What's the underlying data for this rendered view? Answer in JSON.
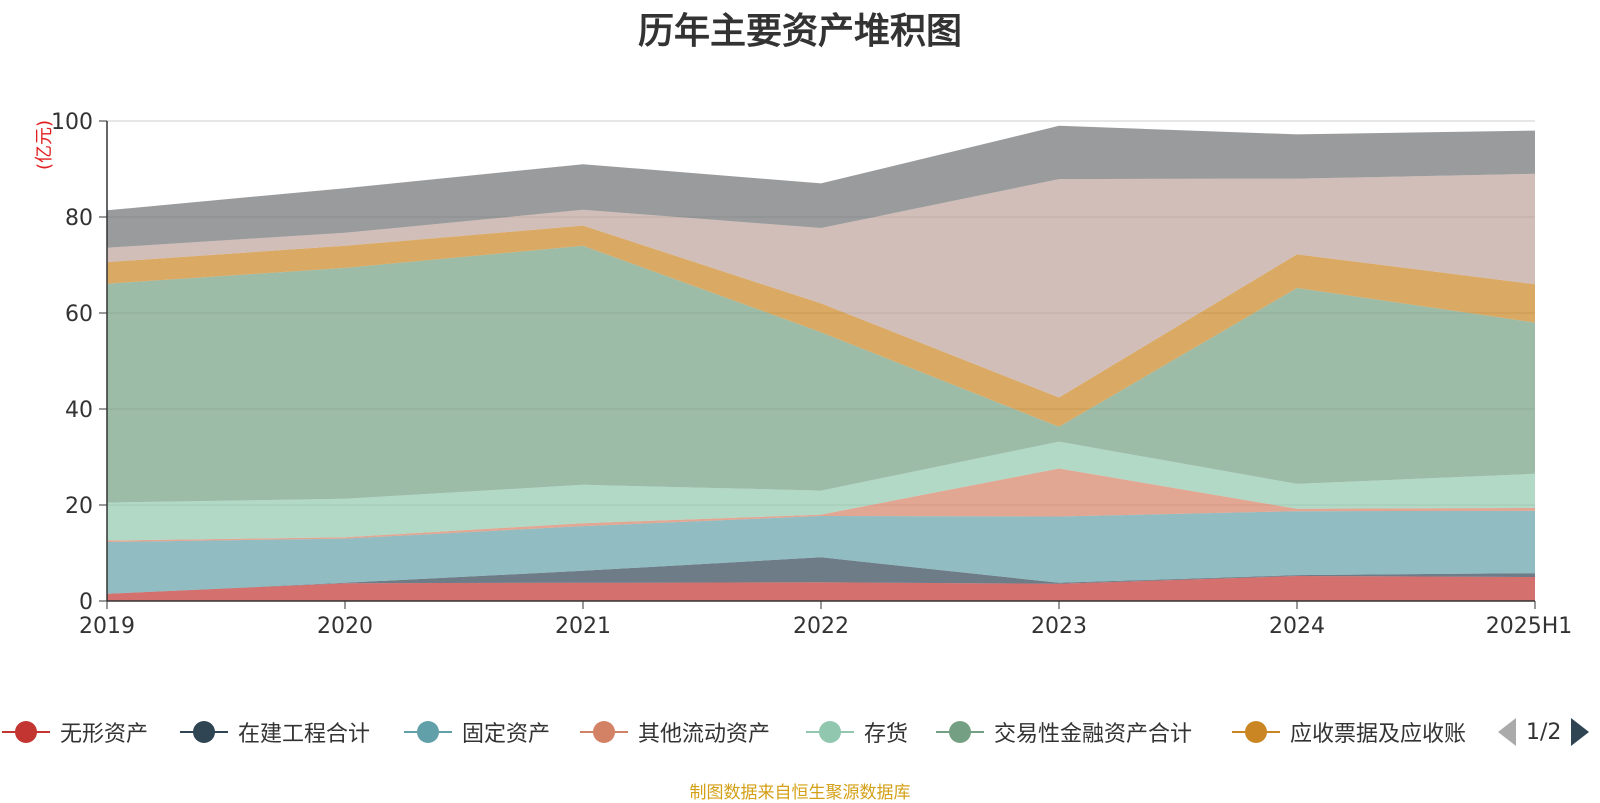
{
  "chart_data": {
    "type": "area",
    "stacked": true,
    "title": "历年主要资产堆积图",
    "unit_label": "(亿元)",
    "categories": [
      "2019",
      "2020",
      "2021",
      "2022",
      "2023",
      "2024",
      "2025H1"
    ],
    "ylim": [
      0,
      100
    ],
    "yticks": [
      0,
      20,
      40,
      60,
      80,
      100
    ],
    "grid": true,
    "series": [
      {
        "name": "无形资产",
        "color": "#c23531",
        "values": [
          1.5,
          3.7,
          3.8,
          3.9,
          3.6,
          5.2,
          5.0
        ]
      },
      {
        "name": "在建工程合计",
        "color": "#2f4554",
        "values": [
          0.0,
          0.1,
          2.5,
          5.2,
          0.2,
          0.2,
          0.8
        ]
      },
      {
        "name": "固定资产",
        "color": "#61a0a8",
        "values": [
          10.8,
          9.2,
          9.3,
          8.6,
          13.8,
          13.3,
          13.0
        ]
      },
      {
        "name": "其他流动资产",
        "color": "#d48265",
        "values": [
          0.3,
          0.3,
          0.6,
          0.3,
          10.0,
          0.5,
          0.6
        ]
      },
      {
        "name": "存货",
        "color": "#91c7ae",
        "values": [
          7.9,
          8.0,
          8.0,
          5.0,
          5.6,
          5.2,
          7.1
        ]
      },
      {
        "name": "交易性金融资产合计",
        "color": "#749f83",
        "values": [
          45.6,
          48.1,
          49.8,
          33.0,
          3.1,
          40.8,
          31.5
        ]
      },
      {
        "name": "应收票据及应收账",
        "color": "#ca8622",
        "values": [
          4.5,
          4.6,
          4.2,
          6.0,
          6.1,
          7.0,
          8.0
        ]
      },
      {
        "name": "",
        "color": "#bda29a",
        "values": [
          3.0,
          2.7,
          3.3,
          15.7,
          45.5,
          15.8,
          23.0
        ]
      },
      {
        "name": "",
        "color": "#6e7074",
        "values": [
          7.8,
          9.3,
          9.5,
          9.3,
          11.1,
          9.2,
          9.0
        ]
      }
    ]
  },
  "legend": {
    "items": [
      {
        "label": "无形资产",
        "color": "#c23531"
      },
      {
        "label": "在建工程合计",
        "color": "#2f4554"
      },
      {
        "label": "固定资产",
        "color": "#61a0a8"
      },
      {
        "label": "其他流动资产",
        "color": "#d48265"
      },
      {
        "label": "存货",
        "color": "#91c7ae"
      },
      {
        "label": "交易性金融资产合计",
        "color": "#749f83"
      },
      {
        "label": "应收票据及应收账",
        "color": "#ca8622"
      }
    ],
    "page_indicator": "1/2"
  },
  "source_note": "制图数据来自恒生聚源数据库"
}
